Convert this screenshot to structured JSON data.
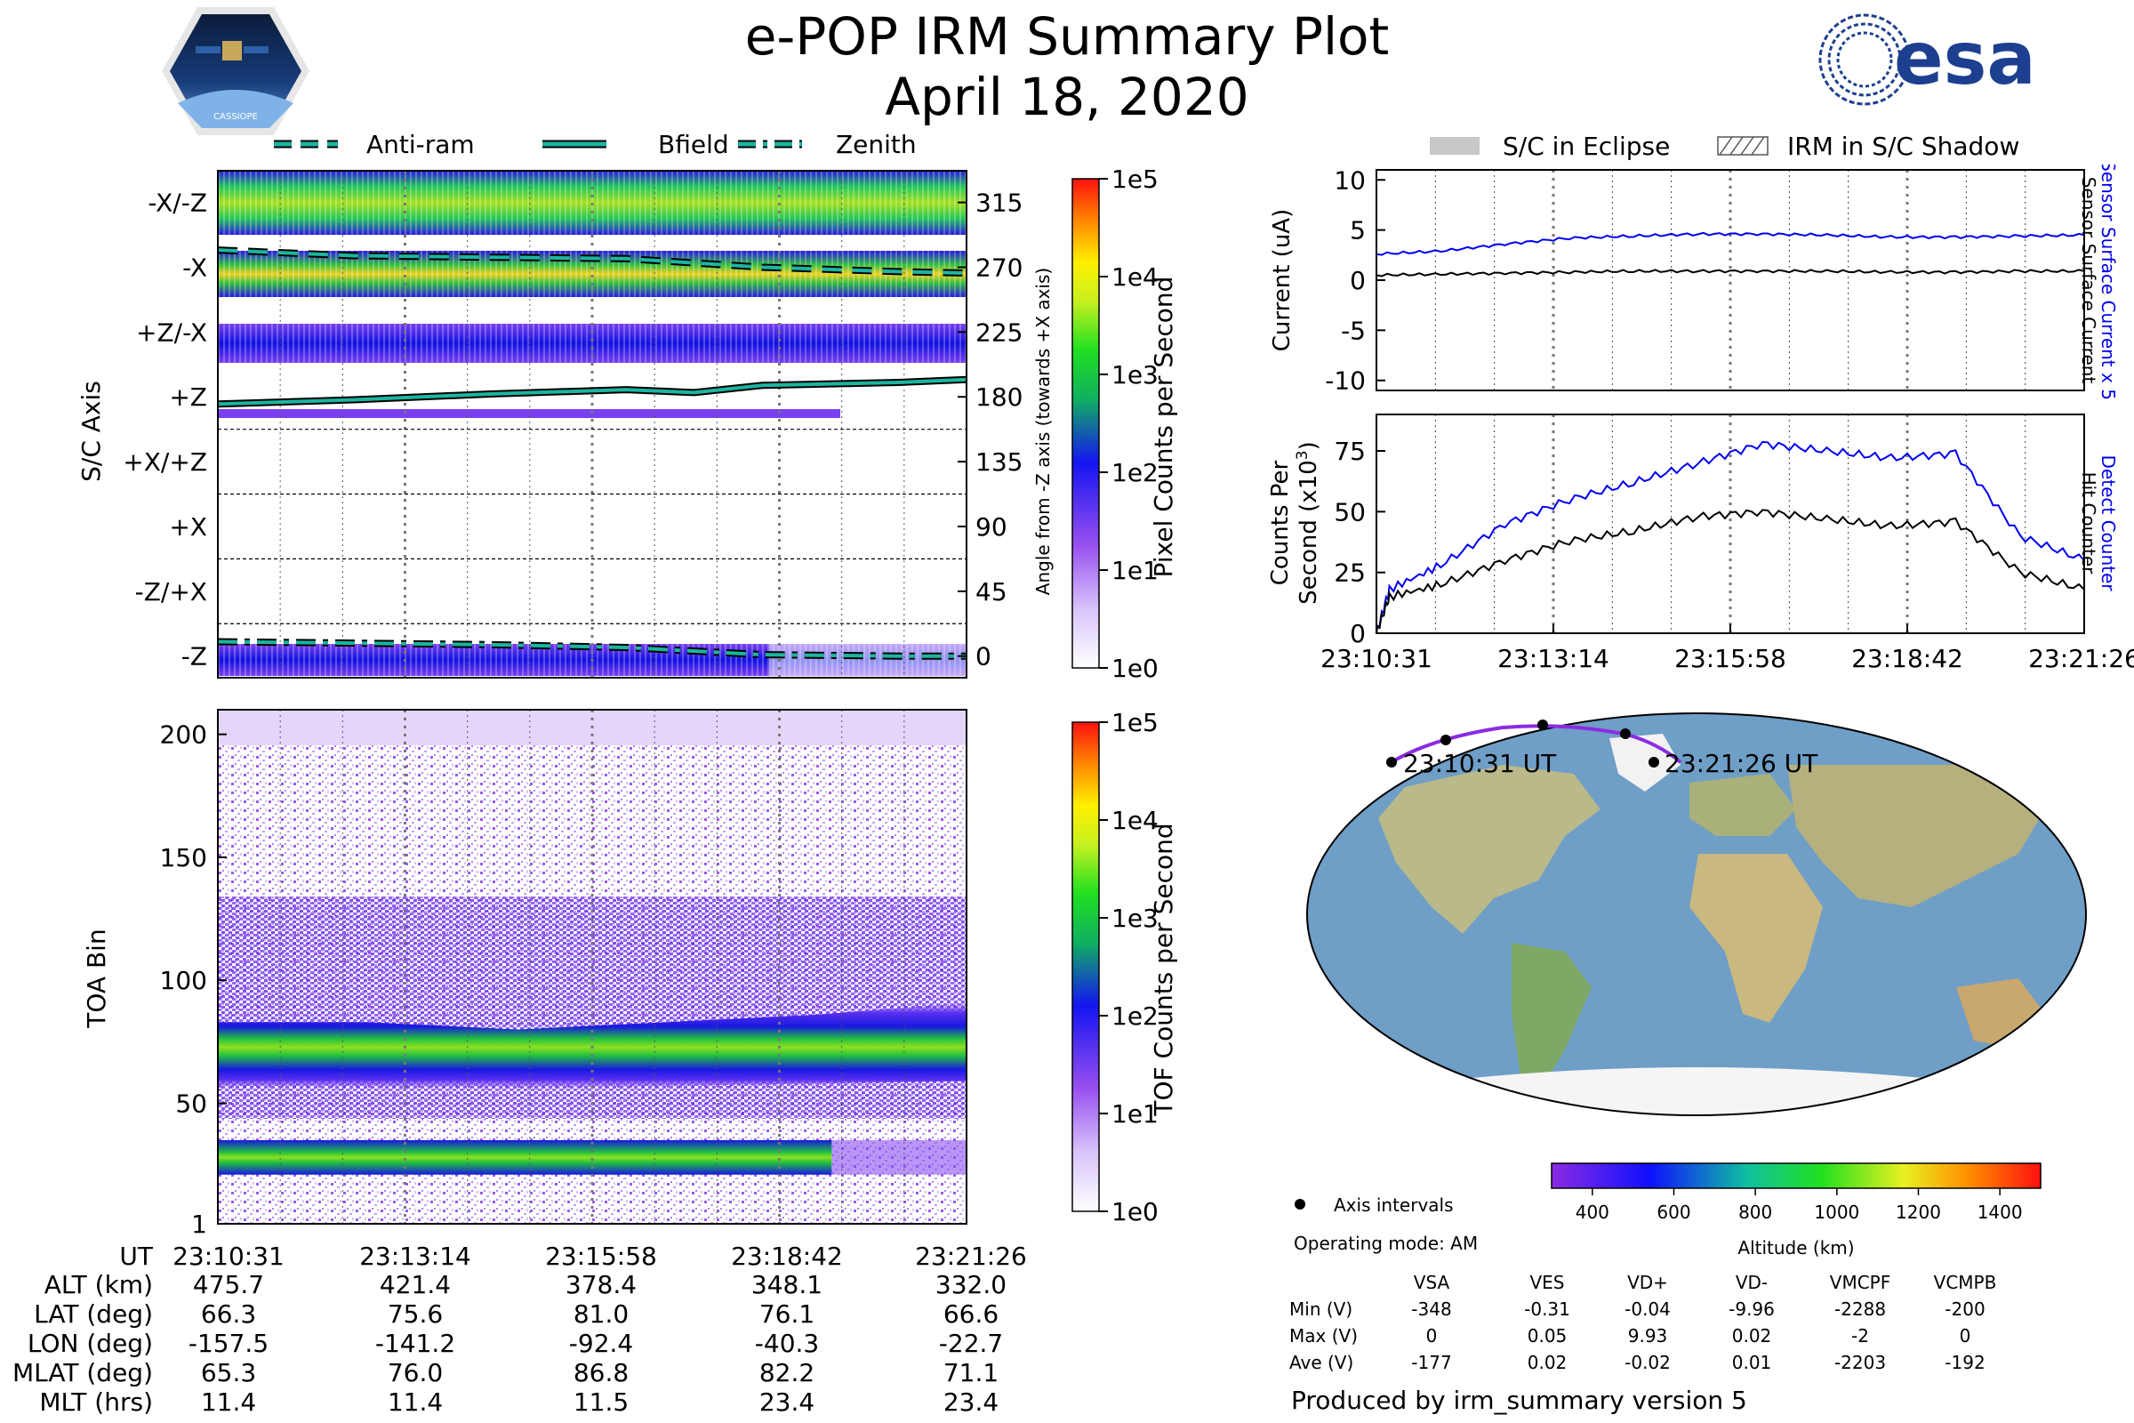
{
  "header": {
    "title": "e-POP IRM Summary Plot",
    "date": "April 18, 2020",
    "logo_left": "CASSIOPE",
    "logo_right": "esa"
  },
  "legend_top_left": {
    "items": [
      {
        "label": "Anti-ram",
        "style": "dashed"
      },
      {
        "label": "Bfield",
        "style": "solid"
      },
      {
        "label": "Zenith",
        "style": "dashdot"
      }
    ]
  },
  "legend_top_right": {
    "items": [
      {
        "label": "S/C in Eclipse",
        "style": "grey-fill"
      },
      {
        "label": "IRM in S/C Shadow",
        "style": "hatched"
      }
    ]
  },
  "colors": {
    "line_teal": "#1bb5a0",
    "line_blue": "#0000ee",
    "line_black": "#000000",
    "track_purple": "#8a2be2"
  },
  "chart_data": [
    {
      "id": "pixel-counts",
      "type": "heatmap",
      "ylabel": "S/C Axis",
      "ylabel_right": "Angle from -Z axis (towards +X axis)",
      "y_ticks": [
        "-X/-Z",
        "-X",
        "+Z/-X",
        "+Z",
        "+X/+Z",
        "+X",
        "-Z/+X",
        "-Z"
      ],
      "y_ticks_right": [
        315,
        270,
        225,
        180,
        135,
        90,
        45,
        0
      ],
      "ylim": [
        -15,
        337
      ],
      "series": [
        {
          "name": "Anti-ram",
          "style": "dashed",
          "x": [
            0,
            2,
            4,
            6,
            8,
            10,
            11
          ],
          "values": [
            282,
            278,
            277,
            276,
            270,
            267,
            266
          ]
        },
        {
          "name": "Bfield",
          "style": "solid",
          "x": [
            0,
            2,
            4,
            6,
            7,
            8,
            10,
            11
          ],
          "values": [
            175,
            178,
            182,
            185,
            183,
            188,
            190,
            192
          ]
        },
        {
          "name": "Zenith",
          "style": "dashdot",
          "x": [
            0,
            2,
            4,
            6,
            8,
            10,
            11
          ],
          "values": [
            10,
            9,
            8,
            6,
            1,
            0,
            0
          ]
        }
      ],
      "colorbar": {
        "label": "Pixel Counts per Second",
        "ticks": [
          "1e0",
          "1e1",
          "1e2",
          "1e3",
          "1e4",
          "1e5"
        ]
      }
    },
    {
      "id": "tof-counts",
      "type": "heatmap",
      "ylabel": "TOA Bin",
      "y_ticks": [
        1,
        50,
        100,
        150,
        200
      ],
      "ylim": [
        1,
        210
      ],
      "bands": [
        {
          "name": "upper",
          "center": [
            70,
            70,
            68,
            70,
            72,
            75
          ],
          "halfwidth": [
            13,
            13,
            12,
            13,
            14,
            16
          ]
        },
        {
          "name": "lower",
          "center": [
            28,
            28,
            28,
            28,
            28
          ],
          "halfwidth": [
            7,
            7,
            7,
            7,
            7
          ]
        }
      ],
      "colorbar": {
        "label": "TOF Counts per Second",
        "ticks": [
          "1e0",
          "1e1",
          "1e2",
          "1e3",
          "1e4",
          "1e5"
        ]
      }
    },
    {
      "id": "current",
      "type": "line",
      "ylabel": "Current (uA)",
      "ylim": [
        -11,
        11
      ],
      "y_ticks": [
        10,
        5,
        0,
        -5,
        -10
      ],
      "right_labels": [
        {
          "text": "Sensor Surface Current x 5",
          "color": "#0000ee"
        },
        {
          "text": "Sensor Surface Current",
          "color": "#000000"
        }
      ],
      "series": [
        {
          "name": "Sensor Surface Current x 5",
          "color": "#0000ee",
          "x": [
            0,
            1,
            2,
            3,
            4,
            5,
            6,
            7,
            8,
            9,
            10,
            11
          ],
          "values": [
            2.6,
            2.9,
            3.6,
            4.2,
            4.4,
            4.6,
            4.6,
            4.5,
            4.3,
            4.3,
            4.4,
            4.5
          ]
        },
        {
          "name": "Sensor Surface Current",
          "color": "#000000",
          "x": [
            0,
            1,
            2,
            3,
            4,
            5,
            6,
            7,
            8,
            9,
            10,
            11
          ],
          "values": [
            0.5,
            0.6,
            0.7,
            0.8,
            0.9,
            0.9,
            0.9,
            0.9,
            0.8,
            0.8,
            0.9,
            0.9
          ]
        }
      ]
    },
    {
      "id": "counts",
      "type": "line",
      "ylabel": "Counts Per Second (x10^3)",
      "ylabel_line1": "Counts Per",
      "ylabel_line2": "Second (x10",
      "ylabel_sup": "3",
      "ylabel_end": ")",
      "ylim": [
        0,
        90
      ],
      "y_ticks": [
        0,
        25,
        50,
        75
      ],
      "x_ticks": [
        "23:10:31",
        "23:13:14",
        "23:15:58",
        "23:18:42",
        "23:21:26"
      ],
      "right_labels": [
        {
          "text": "Detect Counter",
          "color": "#0000ee"
        },
        {
          "text": "Hit Counter",
          "color": "#000000"
        }
      ],
      "series": [
        {
          "name": "Detect Counter",
          "color": "#0000ee",
          "x": [
            0,
            0.2,
            1,
            2,
            3,
            4,
            5,
            6,
            7,
            8,
            9,
            10,
            11
          ],
          "values": [
            0,
            18,
            28,
            45,
            55,
            62,
            70,
            78,
            75,
            72,
            74,
            40,
            30
          ]
        },
        {
          "name": "Hit Counter",
          "color": "#000000",
          "x": [
            0,
            0.2,
            1,
            2,
            3,
            4,
            5,
            6,
            7,
            8,
            9,
            10,
            11
          ],
          "values": [
            0,
            15,
            20,
            30,
            38,
            42,
            48,
            50,
            47,
            44,
            46,
            25,
            18
          ]
        }
      ]
    },
    {
      "id": "ground-track",
      "type": "scatter",
      "labels": [
        "23:10:31 UT",
        "23:21:26 UT"
      ],
      "colorbar": {
        "label": "Altitude (km)",
        "ticks": [
          400,
          600,
          800,
          1000,
          1200,
          1400
        ],
        "range": [
          300,
          1500
        ]
      },
      "legend": "Axis intervals",
      "points": [
        {
          "lon": -157.5,
          "lat": 66.3
        },
        {
          "lon": -141.2,
          "lat": 75.6
        },
        {
          "lon": -92.4,
          "lat": 81.0
        },
        {
          "lon": -40.3,
          "lat": 76.1
        },
        {
          "lon": -22.7,
          "lat": 66.6
        }
      ]
    }
  ],
  "time_axis": {
    "label": "UT",
    "ticks": [
      "23:10:31",
      "23:13:14",
      "23:15:58",
      "23:18:42",
      "23:21:26"
    ]
  },
  "ephemeris_table": {
    "rows": [
      {
        "label": "ALT (km)",
        "values": [
          "475.7",
          "421.4",
          "378.4",
          "348.1",
          "332.0"
        ]
      },
      {
        "label": "LAT (deg)",
        "values": [
          "66.3",
          "75.6",
          "81.0",
          "76.1",
          "66.6"
        ]
      },
      {
        "label": "LON (deg)",
        "values": [
          "-157.5",
          "-141.2",
          "-92.4",
          "-40.3",
          "-22.7"
        ]
      },
      {
        "label": "MLAT (deg)",
        "values": [
          "65.3",
          "76.0",
          "86.8",
          "82.2",
          "71.1"
        ]
      },
      {
        "label": "MLT (hrs)",
        "values": [
          "11.4",
          "11.4",
          "11.5",
          "23.4",
          "23.4"
        ]
      }
    ]
  },
  "operating_mode": "Operating mode: AM",
  "voltage_table": {
    "columns": [
      "VSA",
      "VES",
      "VD+",
      "VD-",
      "VMCPF",
      "VCMPB"
    ],
    "rows": [
      {
        "label": "Min (V)",
        "values": [
          "-348",
          "-0.31",
          "-0.04",
          "-9.96",
          "-2288",
          "-200"
        ]
      },
      {
        "label": "Max (V)",
        "values": [
          "0",
          "0.05",
          "9.93",
          "0.02",
          "-2",
          "0"
        ]
      },
      {
        "label": "Ave (V)",
        "values": [
          "-177",
          "0.02",
          "-0.02",
          "0.01",
          "-2203",
          "-192"
        ]
      }
    ]
  },
  "footer": "Produced by irm_summary version 5"
}
